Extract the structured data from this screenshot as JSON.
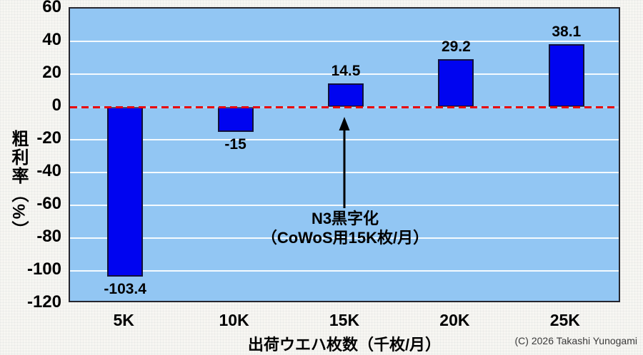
{
  "chart_data": {
    "type": "bar",
    "categories": [
      "5K",
      "10K",
      "15K",
      "20K",
      "25K"
    ],
    "values": [
      -103.4,
      -15,
      14.5,
      29.2,
      38.1
    ],
    "value_labels": [
      "-103.4",
      "-15",
      "14.5",
      "29.2",
      "38.1"
    ],
    "xlabel": "出荷ウエハ枚数（千枚/月）",
    "ylabel": "粗利率（%）",
    "ylim": [
      -120,
      60
    ],
    "yticks": [
      60,
      40,
      20,
      0,
      -20,
      -40,
      -60,
      -80,
      -100,
      -120
    ],
    "grid": true,
    "legend": "none",
    "zero_line": {
      "value": 0,
      "style": "dashed",
      "color": "#e90505"
    },
    "annotation": {
      "line1": "N3黒字化",
      "line2": "（CoWoS用15K枚/月）",
      "target_category": "15K",
      "arrow": "up"
    },
    "colors": {
      "bar": "#0004f0",
      "bar_border": "#12123a",
      "plot_bg": "#92c6f3",
      "gridline": "#ffffff",
      "zero_line": "#e90505",
      "axis_border": "#26262e",
      "text": "#000000"
    }
  },
  "footer": {
    "copyright": "(C) 2026 Takashi Yunogami"
  }
}
